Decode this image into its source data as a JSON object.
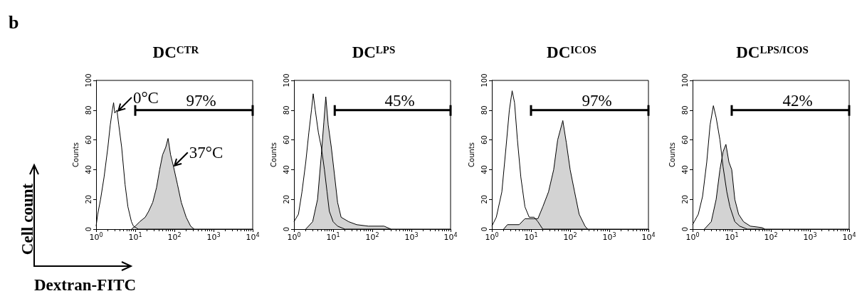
{
  "chart_data": [
    {
      "type": "line",
      "title": "DC$^{CTR}$",
      "ylabel": "Counts",
      "xlim": [
        1,
        10000
      ],
      "ylim": [
        0,
        100
      ],
      "log": "x",
      "grid": false,
      "legend": "top",
      "marker": "none",
      "xticks": [
        {
          "value": 1,
          "label": "10$^{0}$"
        },
        {
          "value": 10,
          "label": "10$^{1}$"
        },
        {
          "value": 100,
          "label": "10$^{2}$"
        },
        {
          "value": 1000,
          "label": "10$^{3}$"
        },
        {
          "value": 10000,
          "label": "10$^{4}$"
        }
      ],
      "yticks": [
        0,
        20,
        40,
        60,
        80,
        100
      ],
      "series": [
        {
          "type": "line",
          "color": "#000000",
          "x": [
            1,
            1.1,
            1.3,
            1.6,
            2,
            2.3,
            2.6,
            2.8,
            3,
            3.4,
            3.8,
            4.5,
            5.5,
            6.5,
            8,
            9,
            12,
            20,
            10000
          ],
          "values": [
            2,
            10,
            20,
            35,
            55,
            70,
            80,
            85,
            78,
            80,
            70,
            55,
            30,
            15,
            5,
            2,
            0,
            0,
            0
          ]
        },
        {
          "type": "area",
          "color": "#d3d3d3",
          "x": [
            8,
            10,
            13,
            18,
            22,
            28,
            35,
            42,
            50,
            60,
            69,
            80,
            95,
            120,
            150,
            200,
            260,
            320
          ],
          "values": [
            0,
            2,
            5,
            8,
            12,
            18,
            28,
            40,
            50,
            55,
            61,
            50,
            42,
            30,
            18,
            8,
            2,
            0
          ]
        },
        {
          "type": "line",
          "name": "97%",
          "color": "#000000",
          "x": [
            10,
            10000
          ],
          "values": [
            80,
            80
          ]
        }
      ],
      "annotations": [
        "b",
        "Cell count",
        "Dextran-FITC",
        {
          "text": "0°C",
          "x": 3.5,
          "y": 79
        },
        {
          "text": "37°C",
          "x": 95,
          "y": 42
        }
      ]
    },
    {
      "type": "line",
      "title": "DC$^{LPS}$",
      "ylabel": "Counts",
      "xlim": [
        1,
        10000
      ],
      "ylim": [
        0,
        100
      ],
      "log": "x",
      "grid": false,
      "legend": "top",
      "marker": "none",
      "xticks": [
        {
          "value": 1,
          "label": "10$^{0}$"
        },
        {
          "value": 10,
          "label": "10$^{1}$"
        },
        {
          "value": 100,
          "label": "10$^{2}$"
        },
        {
          "value": 1000,
          "label": "10$^{3}$"
        },
        {
          "value": 10000,
          "label": "10$^{4}$"
        }
      ],
      "yticks": [
        0,
        20,
        40,
        60,
        80,
        100
      ],
      "series": [
        {
          "type": "line",
          "color": "#000000",
          "x": [
            1,
            1.3,
            1.6,
            2,
            2.4,
            2.8,
            3.1,
            3.5,
            4.2,
            5,
            6,
            7,
            8,
            10,
            13,
            20,
            10000
          ],
          "values": [
            5,
            10,
            25,
            45,
            65,
            80,
            91,
            80,
            65,
            55,
            40,
            25,
            12,
            5,
            2,
            0,
            0
          ]
        },
        {
          "type": "area",
          "color": "#d3d3d3",
          "x": [
            2,
            3,
            4,
            5,
            5.8,
            6.5,
            7.5,
            9,
            11,
            13,
            16,
            25,
            40,
            80,
            200,
            300
          ],
          "values": [
            0,
            5,
            20,
            50,
            72,
            89,
            70,
            55,
            35,
            18,
            8,
            5,
            3,
            2,
            2,
            0
          ]
        },
        {
          "type": "line",
          "name": "45%",
          "color": "#000000",
          "x": [
            11,
            10000
          ],
          "values": [
            80,
            80
          ]
        }
      ]
    },
    {
      "type": "line",
      "title": "DC$^{ICOS}$",
      "ylabel": "Counts",
      "xlim": [
        1,
        10000
      ],
      "ylim": [
        0,
        100
      ],
      "log": "x",
      "grid": false,
      "legend": "top",
      "marker": "none",
      "xticks": [
        {
          "value": 1,
          "label": "10$^{0}$"
        },
        {
          "value": 10,
          "label": "10$^{1}$"
        },
        {
          "value": 100,
          "label": "10$^{2}$"
        },
        {
          "value": 1000,
          "label": "10$^{3}$"
        },
        {
          "value": 10000,
          "label": "10$^{4}$"
        }
      ],
      "yticks": [
        0,
        20,
        40,
        60,
        80,
        100
      ],
      "series": [
        {
          "type": "line",
          "color": "#000000",
          "x": [
            1,
            1.3,
            1.8,
            2.3,
            2.8,
            3.3,
            3.8,
            4.5,
            5.5,
            7,
            9,
            12,
            15,
            20,
            10000
          ],
          "values": [
            2,
            8,
            25,
            55,
            80,
            93,
            85,
            60,
            35,
            15,
            8,
            8,
            5,
            0,
            0
          ]
        },
        {
          "type": "area",
          "color": "#d3d3d3",
          "x": [
            2,
            2.5,
            5,
            7,
            10,
            15,
            20,
            28,
            38,
            48,
            65,
            80,
            100,
            130,
            170,
            240,
            280
          ],
          "values": [
            0,
            3,
            3,
            7,
            7,
            7,
            15,
            25,
            40,
            60,
            73,
            58,
            40,
            25,
            10,
            2,
            0
          ]
        },
        {
          "type": "line",
          "name": "97%",
          "color": "#000000",
          "x": [
            10,
            10000
          ],
          "values": [
            80,
            80
          ]
        }
      ]
    },
    {
      "type": "line",
      "title": "DC$^{LPS/ICOS}$",
      "ylabel": "Counts",
      "xlim": [
        1,
        10000
      ],
      "ylim": [
        0,
        100
      ],
      "log": "x",
      "grid": false,
      "legend": "top",
      "marker": "none",
      "xticks": [
        {
          "value": 1,
          "label": "10$^{0}$"
        },
        {
          "value": 10,
          "label": "10$^{1}$"
        },
        {
          "value": 100,
          "label": "10$^{2}$"
        },
        {
          "value": 1000,
          "label": "10$^{3}$"
        },
        {
          "value": 10000,
          "label": "10$^{4}$"
        }
      ],
      "yticks": [
        0,
        20,
        40,
        60,
        80,
        100
      ],
      "series": [
        {
          "type": "line",
          "color": "#000000",
          "x": [
            1,
            1.4,
            1.8,
            2.3,
            2.8,
            3.4,
            4,
            5,
            6,
            7.5,
            9,
            12,
            16,
            25,
            10000
          ],
          "values": [
            3,
            10,
            22,
            45,
            70,
            83,
            75,
            60,
            42,
            25,
            15,
            5,
            2,
            0,
            0
          ]
        },
        {
          "type": "area",
          "color": "#d3d3d3",
          "x": [
            2,
            3,
            4,
            5,
            6,
            7.1,
            8.5,
            10,
            12,
            15,
            20,
            30,
            60,
            70
          ],
          "values": [
            0,
            5,
            20,
            40,
            52,
            57,
            45,
            40,
            20,
            10,
            5,
            2,
            1,
            0
          ]
        },
        {
          "type": "line",
          "name": "42%",
          "color": "#000000",
          "x": [
            10,
            10000
          ],
          "values": [
            80,
            80
          ]
        }
      ]
    }
  ]
}
